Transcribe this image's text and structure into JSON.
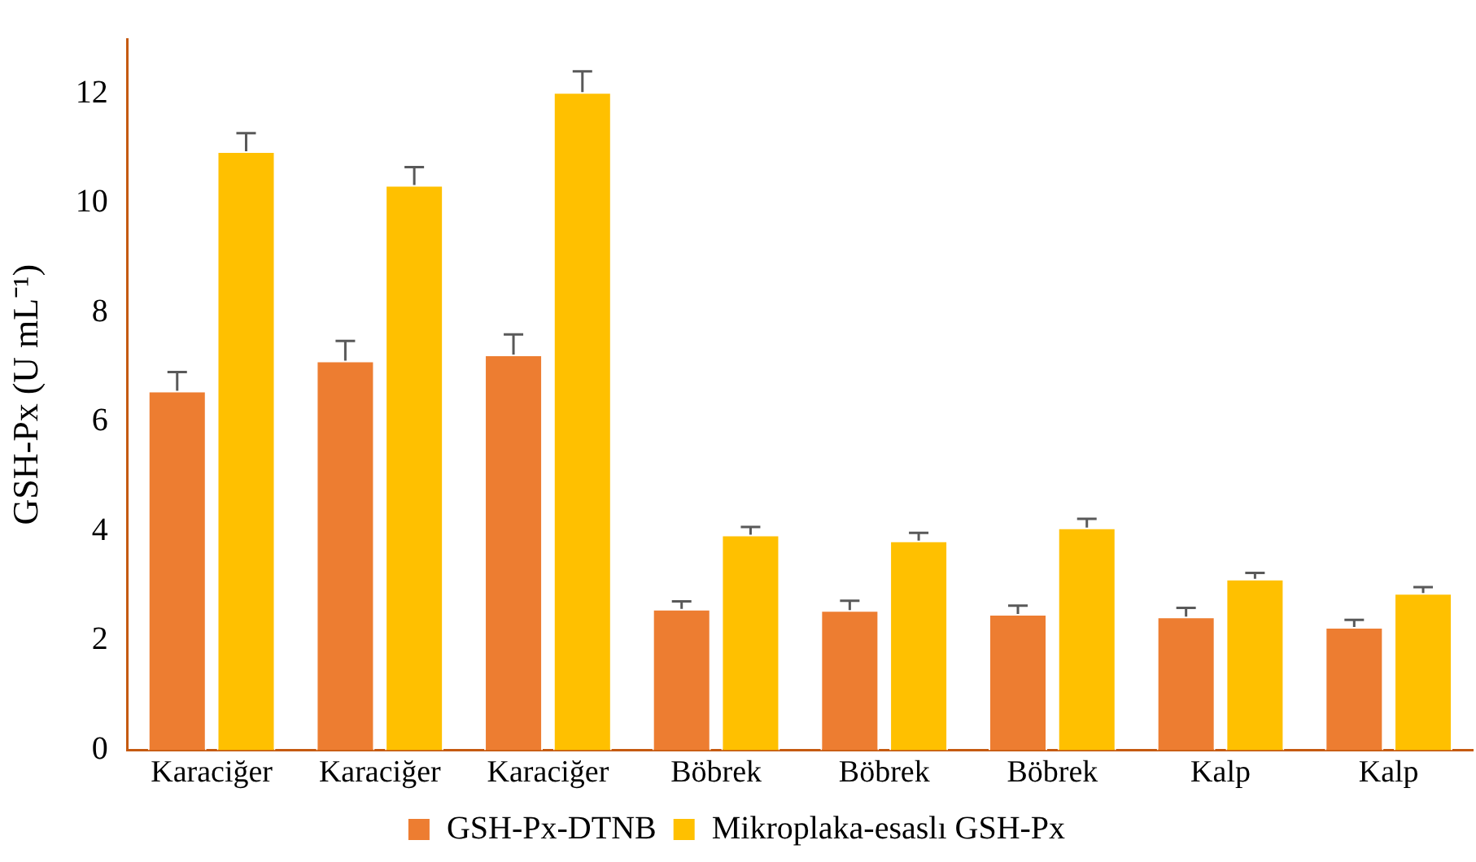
{
  "chart_data": {
    "type": "bar",
    "ylabel": "GSH-Px (U mL⁻¹)",
    "categories": [
      "Karaciğer",
      "Karaciğer",
      "Karaciğer",
      "Böbrek",
      "Böbrek",
      "Böbrek",
      "Kalp",
      "Kalp"
    ],
    "series": [
      {
        "name": "GSH-Px-DTNB",
        "color": "#ed7d31",
        "values": [
          6.57,
          7.12,
          7.23,
          2.58,
          2.56,
          2.49,
          2.44,
          2.25
        ],
        "errors": [
          0.34,
          0.36,
          0.37,
          0.14,
          0.17,
          0.15,
          0.16,
          0.13
        ]
      },
      {
        "name": "Mikroplaka-esaslı GSH-Px",
        "color": "#ffc000",
        "values": [
          10.95,
          10.33,
          12.03,
          3.94,
          3.83,
          4.07,
          3.13,
          2.87
        ],
        "errors": [
          0.33,
          0.33,
          0.38,
          0.14,
          0.14,
          0.16,
          0.11,
          0.11
        ]
      }
    ],
    "ylim": [
      0,
      13
    ],
    "yticks": [
      0,
      2,
      4,
      6,
      8,
      10,
      12
    ],
    "grid": false,
    "legend": "bottom"
  }
}
